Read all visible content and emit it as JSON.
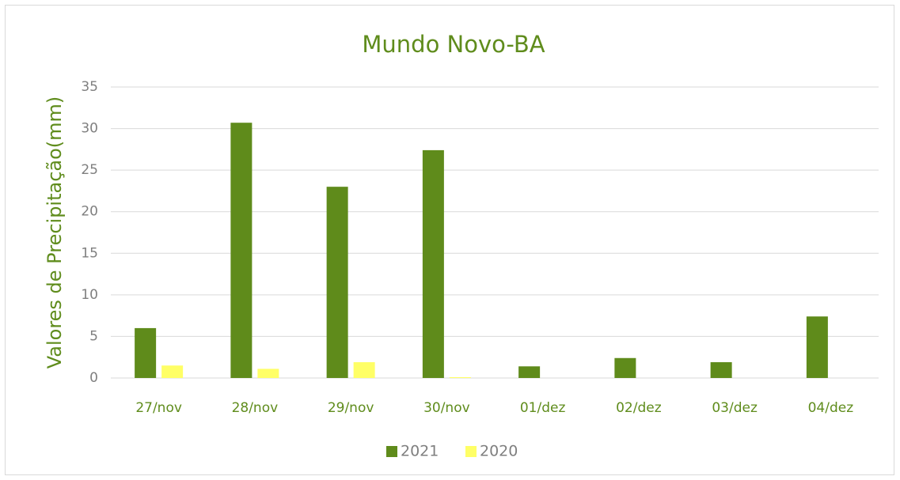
{
  "chart_data": {
    "type": "bar",
    "title": "Mundo Novo-BA",
    "y_label": "Valores de Precipitação(mm)",
    "categories": [
      "27/nov",
      "28/nov",
      "29/nov",
      "30/nov",
      "01/dez",
      "02/dez",
      "03/dez",
      "04/dez"
    ],
    "series": [
      {
        "name": "2021",
        "color": "#5f8b1b",
        "values": [
          6.0,
          30.7,
          23.0,
          27.4,
          1.4,
          2.4,
          1.9,
          7.4
        ]
      },
      {
        "name": "2020",
        "color": "#ffff66",
        "values": [
          1.5,
          1.1,
          1.9,
          0.1,
          0,
          0,
          0,
          0
        ]
      }
    ],
    "ylim": [
      0,
      35
    ],
    "yticks": [
      0,
      5,
      10,
      15,
      20,
      25,
      30,
      35
    ],
    "grid": true,
    "legend": "bottom"
  }
}
